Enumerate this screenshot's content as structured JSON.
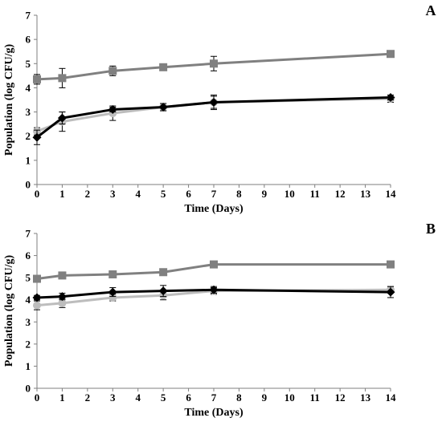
{
  "chart_data": [
    {
      "panel_label": "A",
      "type": "line",
      "xlabel": "Time (Days)",
      "ylabel": "Population (log CFU/g)",
      "xlim": [
        0,
        14
      ],
      "ylim": [
        0,
        7
      ],
      "x_ticks": [
        0,
        1,
        2,
        3,
        4,
        5,
        6,
        7,
        8,
        9,
        10,
        11,
        12,
        13,
        14
      ],
      "y_ticks": [
        0,
        1,
        2,
        3,
        4,
        5,
        6,
        7
      ],
      "grid": false,
      "series": [
        {
          "color": "#bdbdbd",
          "marker": "circle",
          "x": [
            0,
            1,
            3,
            5,
            7,
            14
          ],
          "values": [
            2.2,
            2.6,
            2.95,
            3.2,
            3.4,
            3.55
          ],
          "errors": [
            0.15,
            0.4,
            0.3,
            0.15,
            0.25,
            0.15
          ]
        },
        {
          "color": "#808080",
          "marker": "square",
          "x": [
            0,
            1,
            3,
            5,
            7,
            14
          ],
          "values": [
            4.35,
            4.4,
            4.7,
            4.85,
            5.0,
            5.4
          ],
          "errors": [
            0.2,
            0.4,
            0.2,
            0.1,
            0.3,
            0.1
          ]
        },
        {
          "color": "#000000",
          "marker": "diamond",
          "x": [
            0,
            1,
            3,
            5,
            7,
            14
          ],
          "values": [
            1.95,
            2.75,
            3.1,
            3.2,
            3.4,
            3.6
          ],
          "errors": [
            0.3,
            0.25,
            0.1,
            0.15,
            0.3,
            0.1
          ]
        }
      ]
    },
    {
      "panel_label": "B",
      "type": "line",
      "xlabel": "Time (Days)",
      "ylabel": "Population (log CFU/g)",
      "xlim": [
        0,
        14
      ],
      "ylim": [
        0,
        7
      ],
      "x_ticks": [
        0,
        1,
        2,
        3,
        4,
        5,
        6,
        7,
        8,
        9,
        10,
        11,
        12,
        13,
        14
      ],
      "y_ticks": [
        0,
        1,
        2,
        3,
        4,
        5,
        6,
        7
      ],
      "grid": false,
      "series": [
        {
          "color": "#bdbdbd",
          "marker": "circle",
          "x": [
            0,
            1,
            3,
            5,
            7,
            14
          ],
          "values": [
            3.75,
            3.85,
            4.1,
            4.2,
            4.4,
            4.45
          ],
          "errors": [
            0.2,
            0.2,
            0.15,
            0.2,
            0.15,
            0.15
          ]
        },
        {
          "color": "#808080",
          "marker": "square",
          "x": [
            0,
            1,
            3,
            5,
            7,
            14
          ],
          "values": [
            4.95,
            5.1,
            5.15,
            5.25,
            5.6,
            5.6
          ],
          "errors": [
            0.15,
            0.15,
            0.1,
            0.15,
            0.05,
            0.05
          ]
        },
        {
          "color": "#000000",
          "marker": "diamond",
          "x": [
            0,
            1,
            3,
            5,
            7,
            14
          ],
          "values": [
            4.1,
            4.15,
            4.35,
            4.4,
            4.45,
            4.35
          ],
          "errors": [
            0.1,
            0.15,
            0.2,
            0.25,
            0.15,
            0.25
          ]
        }
      ]
    }
  ]
}
